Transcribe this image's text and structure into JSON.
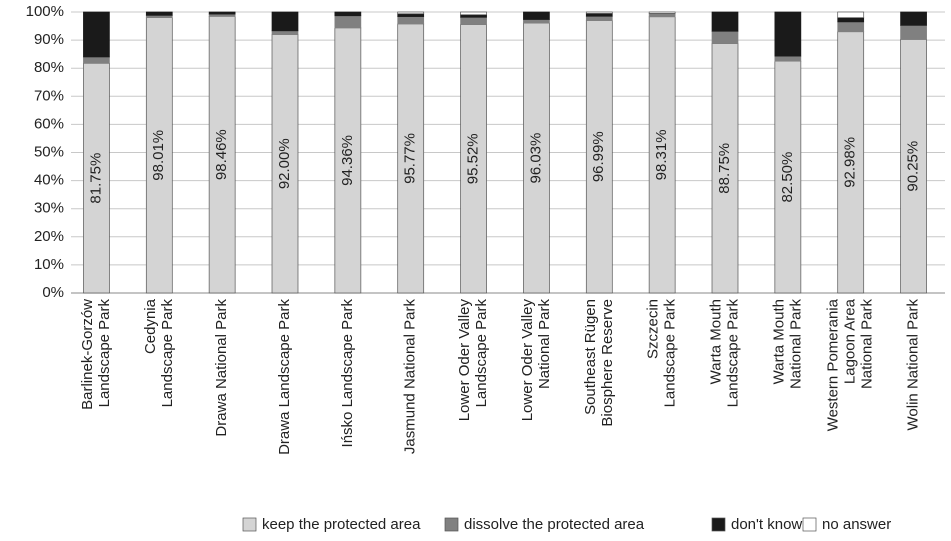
{
  "chart_data": {
    "type": "stacked-bar-100",
    "categories": [
      [
        "Barlinek-Gorzów",
        "Landscape Park"
      ],
      [
        "Cedynia",
        "Landscape Park"
      ],
      [
        "Drawa National Park"
      ],
      [
        "Drawa Landscape Park"
      ],
      [
        "Ińsko Landscape Park"
      ],
      [
        "Jasmund National Park"
      ],
      [
        "Lower Oder Valley",
        "Landscape Park"
      ],
      [
        "Lower Oder Valley",
        "National Park"
      ],
      [
        "Southeast Rügen",
        "Biosphere Reserve"
      ],
      [
        "Szczecin",
        "Landscape Park"
      ],
      [
        "Warta Mouth",
        "Landscape Park"
      ],
      [
        "Warta Mouth",
        "National Park"
      ],
      [
        "Western Pomerania",
        "Lagoon Area",
        "National Park"
      ],
      [
        "Wolin National Park"
      ]
    ],
    "series": [
      {
        "name": "keep the protected area",
        "color": "#d4d4d4",
        "values": [
          81.75,
          98.01,
          98.46,
          92.0,
          94.36,
          95.77,
          95.52,
          96.03,
          96.99,
          98.31,
          88.75,
          82.5,
          92.98,
          90.25
        ],
        "value_labels": [
          "81.75%",
          "98.01%",
          "98.46%",
          "92.00%",
          "94.36%",
          "95.77%",
          "95.52%",
          "96.03%",
          "96.99%",
          "98.31%",
          "88.75%",
          "82.50%",
          "92.98%",
          "90.25%"
        ]
      },
      {
        "name": "dissolve the protected area",
        "color": "#808080",
        "values": [
          2.25,
          0.8,
          0.8,
          1.3,
          4.3,
          2.6,
          2.6,
          1.3,
          1.5,
          1.2,
          4.4,
          1.8,
          3.5,
          5.0
        ]
      },
      {
        "name": "don't know",
        "color": "#1a1a1a",
        "values": [
          16.0,
          1.19,
          0.74,
          6.7,
          1.34,
          1.0,
          0.9,
          2.67,
          1.0,
          0,
          6.85,
          15.7,
          1.5,
          4.75
        ]
      },
      {
        "name": "no answer",
        "color": "#ffffff",
        "values": [
          0,
          0,
          0,
          0,
          0,
          0.63,
          0.98,
          0,
          0.51,
          0.49,
          0,
          0,
          2.02,
          0
        ]
      }
    ],
    "ylim": [
      0,
      100
    ],
    "yticks": [
      {
        "value": 0,
        "label": "0%"
      },
      {
        "value": 10,
        "label": "10%"
      },
      {
        "value": 20,
        "label": "20%"
      },
      {
        "value": 30,
        "label": "30%"
      },
      {
        "value": 40,
        "label": "40%"
      },
      {
        "value": 50,
        "label": "50%"
      },
      {
        "value": 60,
        "label": "60%"
      },
      {
        "value": 70,
        "label": "70%"
      },
      {
        "value": 80,
        "label": "80%"
      },
      {
        "value": 90,
        "label": "90%"
      },
      {
        "value": 100,
        "label": "100%"
      }
    ],
    "grid": true,
    "legend": "bottom"
  }
}
